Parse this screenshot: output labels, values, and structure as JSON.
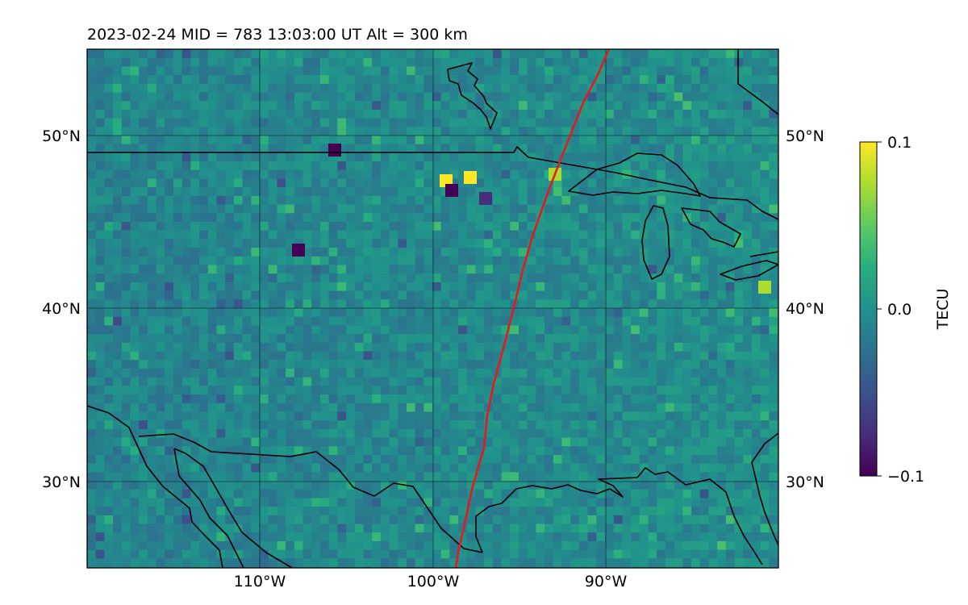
{
  "map": {
    "title": "2023-02-24  MID = 783    13:03:00  UT  Alt = 300 km",
    "extent": {
      "lon": [
        -120,
        -80
      ],
      "lat": [
        25,
        55
      ]
    },
    "lat_ticks": [
      {
        "value": 50,
        "label": "50°N"
      },
      {
        "value": 40,
        "label": "40°N"
      },
      {
        "value": 30,
        "label": "30°N"
      }
    ],
    "lon_ticks": [
      {
        "value": -110,
        "label": "110°W"
      },
      {
        "value": -100,
        "label": "100°W"
      },
      {
        "value": -90,
        "label": "90°W"
      }
    ],
    "colorbar": {
      "label": "TECU",
      "min": -0.1,
      "max": 0.1,
      "ticks": [
        {
          "value": 0.1,
          "label": "0.1"
        },
        {
          "value": 0.0,
          "label": "0.0"
        },
        {
          "value": -0.1,
          "label": "−0.1"
        }
      ],
      "colormap": "viridis"
    },
    "terminator_color": "#e41a1c",
    "coastline_color": "#000000",
    "grid_color": "#000000"
  }
}
